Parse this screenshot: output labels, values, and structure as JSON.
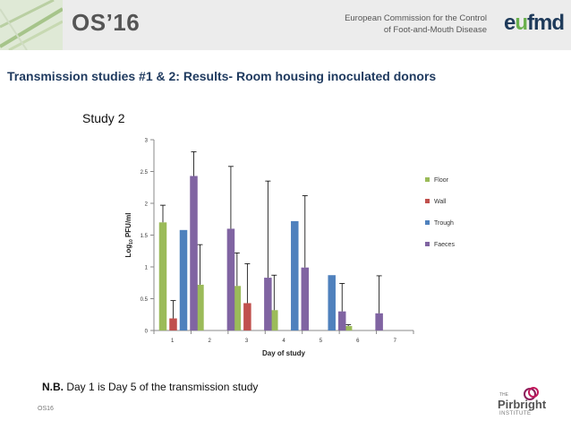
{
  "header": {
    "brand": "OS’16",
    "org_line1": "European Commission for the Control",
    "org_line2": "of Foot-and-Mouth Disease",
    "logo_text_e": "e",
    "logo_text_o": "u",
    "logo_text_rest": "fmd"
  },
  "slide": {
    "title": "Transmission studies #1 & 2: Results- Room housing inoculated donors",
    "study_label": "Study 2",
    "note_bold": "N.B.",
    "note_text": " Day 1 is Day 5 of the transmission study",
    "footer": "OS16"
  },
  "pirbright": {
    "the": "THE",
    "name": "Pirbright",
    "institute": "INSTITUTE"
  },
  "colors": {
    "floor": "#9bbb59",
    "wall": "#c0504d",
    "trough": "#4f81bd",
    "faeces": "#8064a2"
  },
  "chart_data": {
    "type": "bar",
    "title": "Study 2",
    "xlabel": "Day of study",
    "ylabel_prefix": "Log",
    "ylabel_sub": "10",
    "ylabel_suffix": " PFU/ml",
    "ylim": [
      0,
      3
    ],
    "yticks": [
      "0",
      "0.5",
      "1",
      "1.5",
      "2",
      "2.5",
      "3"
    ],
    "categories": [
      "1",
      "2",
      "3",
      "4",
      "5",
      "6",
      "7"
    ],
    "legend_position": "right",
    "series": [
      {
        "name": "Floor",
        "color": "#9bbb59",
        "values": [
          1.7,
          0.72,
          0.7,
          0.32,
          0,
          0.07,
          0
        ],
        "errors": [
          0.27,
          0.63,
          0.52,
          0.55,
          0,
          0.02,
          0
        ]
      },
      {
        "name": "Wall",
        "color": "#c0504d",
        "values": [
          0.19,
          0,
          0.43,
          0,
          0,
          0,
          0
        ],
        "errors": [
          0.28,
          0,
          0.62,
          0,
          0,
          0,
          0
        ]
      },
      {
        "name": "Trough",
        "color": "#4f81bd",
        "values": [
          1.58,
          0,
          0,
          1.72,
          0.87,
          0,
          0
        ],
        "errors": [
          0,
          0,
          0,
          0,
          0,
          0,
          0
        ]
      },
      {
        "name": "Faeces",
        "color": "#8064a2",
        "values": [
          2.43,
          1.6,
          0.83,
          0.99,
          0.3,
          0.27,
          0
        ],
        "errors": [
          0.38,
          0.98,
          1.52,
          1.13,
          0.44,
          0.59,
          0
        ]
      }
    ]
  }
}
